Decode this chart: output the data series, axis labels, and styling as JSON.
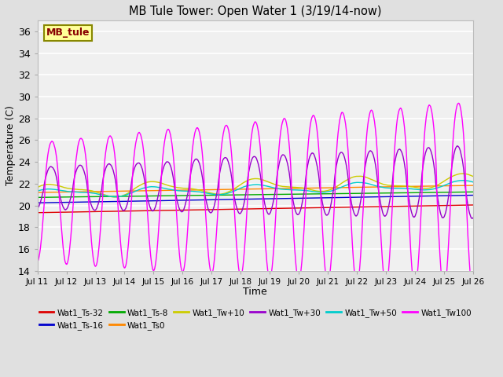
{
  "title": "MB Tule Tower: Open Water 1 (3/19/14-now)",
  "xlabel": "Time",
  "ylabel": "Temperature (C)",
  "ylim": [
    14,
    37
  ],
  "yticks": [
    14,
    16,
    18,
    20,
    22,
    24,
    26,
    28,
    30,
    32,
    34,
    36
  ],
  "xtick_labels": [
    "Jul 11",
    "Jul 12",
    "Jul 13",
    "Jul 14",
    "Jul 15",
    "Jul 16",
    "Jul 17",
    "Jul 18",
    "Jul 19",
    "Jul 20",
    "Jul 21",
    "Jul 22",
    "Jul 23",
    "Jul 24",
    "Jul 25",
    "Jul 26"
  ],
  "background_color": "#e0e0e0",
  "plot_bg_color": "#f0f0f0",
  "grid_color": "#ffffff",
  "series_colors": {
    "Wat1_Ts-32": "#dd0000",
    "Wat1_Ts-16": "#0000cc",
    "Wat1_Ts-8": "#00aa00",
    "Wat1_Ts0": "#ff8800",
    "Wat1_Tw+10": "#cccc00",
    "Wat1_Tw+30": "#9900cc",
    "Wat1_Tw+50": "#00cccc",
    "Wat1_Tw100": "#ff00ff"
  },
  "legend_box_color": "#ffff99",
  "legend_box_border": "#888800",
  "legend_box_text": "MB_tule",
  "legend_box_text_color": "#880000"
}
